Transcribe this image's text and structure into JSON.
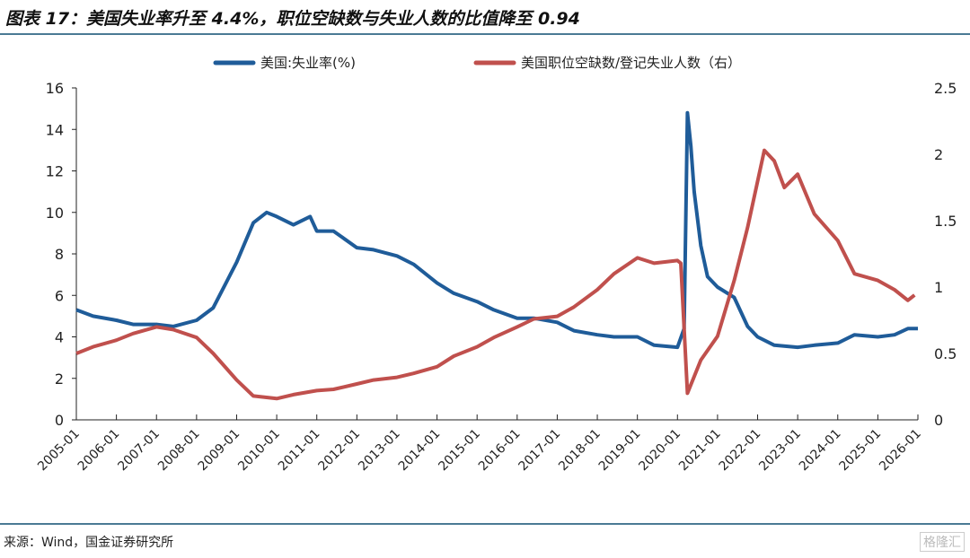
{
  "title": "图表 17：美国失业率升至 4.4%，职位空缺数与失业人数的比值降至 0.94",
  "source": "来源：Wind，国金证券研究所",
  "watermark": "格隆汇",
  "chart_data": {
    "type": "line",
    "title": "",
    "x_ticks": [
      "2005-01",
      "2006-01",
      "2007-01",
      "2008-01",
      "2009-01",
      "2010-01",
      "2011-01",
      "2012-01",
      "2013-01",
      "2014-01",
      "2015-01",
      "2016-01",
      "2017-01",
      "2018-01",
      "2019-01",
      "2020-01",
      "2021-01",
      "2022-01",
      "2023-01",
      "2024-01",
      "2025-01",
      "2026-01"
    ],
    "y_left": {
      "range": [
        0,
        16
      ],
      "ticks": [
        "0",
        "2",
        "4",
        "6",
        "8",
        "10",
        "12",
        "14",
        "16"
      ]
    },
    "y_right": {
      "range": [
        0,
        2.5
      ],
      "ticks": [
        "0",
        "0.5",
        "1",
        "1.5",
        "2",
        "2.5"
      ]
    },
    "legend_position": "top",
    "grid": false,
    "series": [
      {
        "name": "美国:失业率(%)",
        "axis": "left",
        "color": "#1f5c99",
        "points": [
          [
            "2005-01",
            5.3
          ],
          [
            "2005-06",
            5.0
          ],
          [
            "2006-01",
            4.8
          ],
          [
            "2006-06",
            4.6
          ],
          [
            "2007-01",
            4.6
          ],
          [
            "2007-06",
            4.5
          ],
          [
            "2008-01",
            4.8
          ],
          [
            "2008-06",
            5.4
          ],
          [
            "2009-01",
            7.6
          ],
          [
            "2009-06",
            9.5
          ],
          [
            "2009-10",
            10.0
          ],
          [
            "2010-01",
            9.8
          ],
          [
            "2010-06",
            9.4
          ],
          [
            "2010-11",
            9.8
          ],
          [
            "2011-01",
            9.1
          ],
          [
            "2011-06",
            9.1
          ],
          [
            "2012-01",
            8.3
          ],
          [
            "2012-06",
            8.2
          ],
          [
            "2013-01",
            7.9
          ],
          [
            "2013-06",
            7.5
          ],
          [
            "2014-01",
            6.6
          ],
          [
            "2014-06",
            6.1
          ],
          [
            "2015-01",
            5.7
          ],
          [
            "2015-06",
            5.3
          ],
          [
            "2016-01",
            4.9
          ],
          [
            "2016-06",
            4.9
          ],
          [
            "2017-01",
            4.7
          ],
          [
            "2017-06",
            4.3
          ],
          [
            "2018-01",
            4.1
          ],
          [
            "2018-06",
            4.0
          ],
          [
            "2019-01",
            4.0
          ],
          [
            "2019-06",
            3.6
          ],
          [
            "2020-01",
            3.5
          ],
          [
            "2020-03",
            4.4
          ],
          [
            "2020-04",
            14.8
          ],
          [
            "2020-05",
            13.2
          ],
          [
            "2020-06",
            11.0
          ],
          [
            "2020-08",
            8.4
          ],
          [
            "2020-10",
            6.9
          ],
          [
            "2021-01",
            6.4
          ],
          [
            "2021-06",
            5.9
          ],
          [
            "2021-10",
            4.5
          ],
          [
            "2022-01",
            4.0
          ],
          [
            "2022-06",
            3.6
          ],
          [
            "2023-01",
            3.5
          ],
          [
            "2023-06",
            3.6
          ],
          [
            "2024-01",
            3.7
          ],
          [
            "2024-06",
            4.1
          ],
          [
            "2025-01",
            4.0
          ],
          [
            "2025-06",
            4.1
          ],
          [
            "2025-10",
            4.4
          ],
          [
            "2026-01",
            4.4
          ]
        ]
      },
      {
        "name": "美国职位空缺数/登记失业人数（右）",
        "axis": "right",
        "color": "#c0504d",
        "points": [
          [
            "2005-01",
            0.5
          ],
          [
            "2005-06",
            0.55
          ],
          [
            "2006-01",
            0.6
          ],
          [
            "2006-06",
            0.65
          ],
          [
            "2007-01",
            0.7
          ],
          [
            "2007-06",
            0.68
          ],
          [
            "2008-01",
            0.62
          ],
          [
            "2008-06",
            0.5
          ],
          [
            "2009-01",
            0.3
          ],
          [
            "2009-06",
            0.18
          ],
          [
            "2010-01",
            0.16
          ],
          [
            "2010-06",
            0.19
          ],
          [
            "2011-01",
            0.22
          ],
          [
            "2011-06",
            0.23
          ],
          [
            "2012-01",
            0.27
          ],
          [
            "2012-06",
            0.3
          ],
          [
            "2013-01",
            0.32
          ],
          [
            "2013-06",
            0.35
          ],
          [
            "2014-01",
            0.4
          ],
          [
            "2014-06",
            0.48
          ],
          [
            "2015-01",
            0.55
          ],
          [
            "2015-06",
            0.62
          ],
          [
            "2016-01",
            0.7
          ],
          [
            "2016-06",
            0.76
          ],
          [
            "2017-01",
            0.78
          ],
          [
            "2017-06",
            0.85
          ],
          [
            "2018-01",
            0.98
          ],
          [
            "2018-06",
            1.1
          ],
          [
            "2019-01",
            1.22
          ],
          [
            "2019-06",
            1.18
          ],
          [
            "2020-01",
            1.2
          ],
          [
            "2020-02",
            1.18
          ],
          [
            "2020-04",
            0.2
          ],
          [
            "2020-08",
            0.45
          ],
          [
            "2021-01",
            0.63
          ],
          [
            "2021-06",
            1.05
          ],
          [
            "2021-10",
            1.45
          ],
          [
            "2022-03",
            2.03
          ],
          [
            "2022-06",
            1.95
          ],
          [
            "2022-09",
            1.75
          ],
          [
            "2023-01",
            1.85
          ],
          [
            "2023-06",
            1.55
          ],
          [
            "2024-01",
            1.35
          ],
          [
            "2024-06",
            1.1
          ],
          [
            "2025-01",
            1.05
          ],
          [
            "2025-06",
            0.98
          ],
          [
            "2025-10",
            0.9
          ],
          [
            "2025-12",
            0.94
          ]
        ]
      }
    ]
  }
}
